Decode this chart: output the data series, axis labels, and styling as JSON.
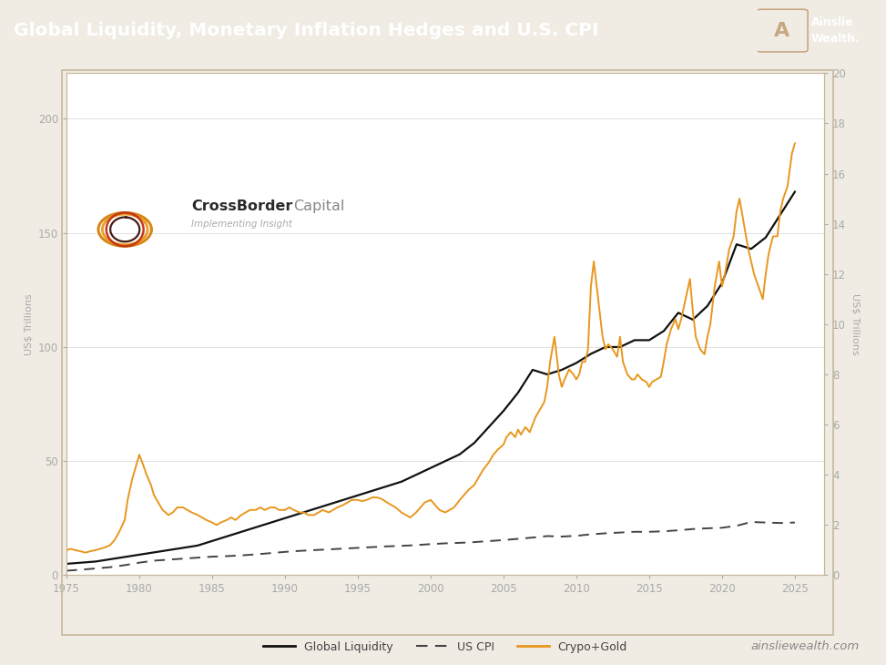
{
  "title": "Global Liquidity, Monetary Inflation Hedges and U.S. CPI",
  "title_bg_color": "#2d0b0e",
  "title_text_color": "#ffffff",
  "chart_bg_color": "#ffffff",
  "outer_bg_color": "#f0ece4",
  "border_color": "#c8b89a",
  "ylabel_left": "US$ Trillions",
  "ylabel_right": "US$ Trillions",
  "xlim": [
    1975,
    2027
  ],
  "ylim_left": [
    0,
    220
  ],
  "ylim_right": [
    0,
    20
  ],
  "xticks": [
    1975,
    1980,
    1985,
    1990,
    1995,
    2000,
    2005,
    2010,
    2015,
    2020,
    2025
  ],
  "yticks_left": [
    0,
    50,
    100,
    150,
    200
  ],
  "yticks_right": [
    0,
    2,
    4,
    6,
    8,
    10,
    12,
    14,
    16,
    18,
    20
  ],
  "tick_color": "#aaaaaa",
  "grid_color": "#e0e0e0",
  "legend_items": [
    "Global Liquidity",
    "US CPI",
    "Crypo+Gold"
  ],
  "legend_colors": [
    "#111111",
    "#444444",
    "#e8971e"
  ],
  "footer_text": "ainsliewealth.com",
  "global_liquidity": {
    "years": [
      1975,
      1976,
      1977,
      1978,
      1979,
      1980,
      1981,
      1982,
      1983,
      1984,
      1985,
      1986,
      1987,
      1988,
      1989,
      1990,
      1991,
      1992,
      1993,
      1994,
      1995,
      1996,
      1997,
      1998,
      1999,
      2000,
      2001,
      2002,
      2003,
      2004,
      2005,
      2006,
      2007,
      2008,
      2009,
      2010,
      2011,
      2012,
      2013,
      2014,
      2015,
      2016,
      2017,
      2018,
      2019,
      2020,
      2021,
      2022,
      2023,
      2024,
      2025
    ],
    "values": [
      5,
      5.5,
      6,
      7,
      8,
      9,
      10,
      11,
      12,
      13,
      15,
      17,
      19,
      21,
      23,
      25,
      27,
      29,
      31,
      33,
      35,
      37,
      39,
      41,
      44,
      47,
      50,
      53,
      58,
      65,
      72,
      80,
      90,
      88,
      90,
      93,
      97,
      100,
      100,
      103,
      103,
      107,
      115,
      112,
      118,
      128,
      145,
      143,
      148,
      158,
      168
    ],
    "color": "#111111",
    "linewidth": 1.6
  },
  "us_cpi": {
    "years": [
      1975,
      1976,
      1977,
      1978,
      1979,
      1980,
      1981,
      1982,
      1983,
      1984,
      1985,
      1986,
      1987,
      1988,
      1989,
      1990,
      1991,
      1992,
      1993,
      1994,
      1995,
      1996,
      1997,
      1998,
      1999,
      2000,
      2001,
      2002,
      2003,
      2004,
      2005,
      2006,
      2007,
      2008,
      2009,
      2010,
      2011,
      2012,
      2013,
      2014,
      2015,
      2016,
      2017,
      2018,
      2019,
      2020,
      2021,
      2022,
      2023,
      2024,
      2025
    ],
    "values": [
      0.18,
      0.22,
      0.27,
      0.32,
      0.4,
      0.5,
      0.58,
      0.62,
      0.66,
      0.7,
      0.74,
      0.76,
      0.79,
      0.83,
      0.88,
      0.93,
      0.97,
      1.0,
      1.03,
      1.06,
      1.09,
      1.12,
      1.15,
      1.17,
      1.2,
      1.24,
      1.27,
      1.29,
      1.32,
      1.36,
      1.4,
      1.45,
      1.5,
      1.56,
      1.54,
      1.57,
      1.63,
      1.67,
      1.7,
      1.73,
      1.73,
      1.75,
      1.79,
      1.84,
      1.87,
      1.89,
      1.97,
      2.12,
      2.1,
      2.08,
      2.1
    ],
    "color": "#444444",
    "linewidth": 1.4
  },
  "crypto_gold": {
    "x": [
      1975.0,
      1975.3,
      1975.6,
      1976.0,
      1976.3,
      1976.6,
      1977.0,
      1977.3,
      1977.6,
      1978.0,
      1978.3,
      1978.6,
      1979.0,
      1979.2,
      1979.5,
      1979.8,
      1980.0,
      1980.2,
      1980.5,
      1980.8,
      1981.0,
      1981.3,
      1981.6,
      1982.0,
      1982.3,
      1982.6,
      1983.0,
      1983.3,
      1983.6,
      1984.0,
      1984.3,
      1984.6,
      1985.0,
      1985.3,
      1985.6,
      1986.0,
      1986.3,
      1986.6,
      1987.0,
      1987.3,
      1987.6,
      1988.0,
      1988.3,
      1988.6,
      1989.0,
      1989.3,
      1989.6,
      1990.0,
      1990.3,
      1990.6,
      1991.0,
      1991.3,
      1991.6,
      1992.0,
      1992.3,
      1992.6,
      1993.0,
      1993.3,
      1993.6,
      1994.0,
      1994.3,
      1994.6,
      1995.0,
      1995.3,
      1995.6,
      1996.0,
      1996.3,
      1996.6,
      1997.0,
      1997.3,
      1997.6,
      1998.0,
      1998.3,
      1998.6,
      1999.0,
      1999.3,
      1999.6,
      2000.0,
      2000.3,
      2000.6,
      2001.0,
      2001.3,
      2001.6,
      2002.0,
      2002.3,
      2002.6,
      2003.0,
      2003.3,
      2003.6,
      2004.0,
      2004.3,
      2004.6,
      2005.0,
      2005.2,
      2005.5,
      2005.8,
      2006.0,
      2006.2,
      2006.5,
      2006.8,
      2007.0,
      2007.2,
      2007.5,
      2007.8,
      2008.0,
      2008.2,
      2008.5,
      2008.8,
      2009.0,
      2009.2,
      2009.5,
      2009.8,
      2010.0,
      2010.2,
      2010.4,
      2010.6,
      2010.8,
      2011.0,
      2011.2,
      2011.5,
      2011.8,
      2012.0,
      2012.2,
      2012.5,
      2012.8,
      2013.0,
      2013.2,
      2013.5,
      2013.8,
      2014.0,
      2014.2,
      2014.5,
      2014.8,
      2015.0,
      2015.2,
      2015.5,
      2015.8,
      2016.0,
      2016.2,
      2016.5,
      2016.8,
      2017.0,
      2017.2,
      2017.5,
      2017.8,
      2018.0,
      2018.2,
      2018.5,
      2018.8,
      2019.0,
      2019.2,
      2019.5,
      2019.8,
      2020.0,
      2020.2,
      2020.5,
      2020.8,
      2021.0,
      2021.2,
      2021.5,
      2021.8,
      2022.0,
      2022.2,
      2022.5,
      2022.8,
      2023.0,
      2023.2,
      2023.5,
      2023.8,
      2024.0,
      2024.2,
      2024.5,
      2024.8,
      2025.0
    ],
    "y": [
      1.0,
      1.05,
      1.0,
      0.95,
      0.9,
      0.95,
      1.0,
      1.05,
      1.1,
      1.2,
      1.4,
      1.7,
      2.2,
      3.0,
      3.8,
      4.4,
      4.8,
      4.5,
      4.0,
      3.6,
      3.2,
      2.9,
      2.6,
      2.4,
      2.5,
      2.7,
      2.7,
      2.6,
      2.5,
      2.4,
      2.3,
      2.2,
      2.1,
      2.0,
      2.1,
      2.2,
      2.3,
      2.2,
      2.4,
      2.5,
      2.6,
      2.6,
      2.7,
      2.6,
      2.7,
      2.7,
      2.6,
      2.6,
      2.7,
      2.6,
      2.5,
      2.5,
      2.4,
      2.4,
      2.5,
      2.6,
      2.5,
      2.6,
      2.7,
      2.8,
      2.9,
      3.0,
      3.0,
      2.95,
      3.0,
      3.1,
      3.1,
      3.05,
      2.9,
      2.8,
      2.7,
      2.5,
      2.4,
      2.3,
      2.5,
      2.7,
      2.9,
      3.0,
      2.8,
      2.6,
      2.5,
      2.6,
      2.7,
      3.0,
      3.2,
      3.4,
      3.6,
      3.9,
      4.2,
      4.5,
      4.8,
      5.0,
      5.2,
      5.5,
      5.7,
      5.5,
      5.8,
      5.6,
      5.9,
      5.7,
      6.0,
      6.3,
      6.6,
      6.9,
      7.5,
      8.5,
      9.5,
      8.0,
      7.5,
      7.8,
      8.2,
      8.0,
      7.8,
      8.0,
      8.5,
      8.5,
      9.0,
      11.5,
      12.5,
      11.0,
      9.5,
      9.0,
      9.2,
      9.0,
      8.7,
      9.5,
      8.5,
      8.0,
      7.8,
      7.8,
      8.0,
      7.8,
      7.7,
      7.5,
      7.7,
      7.8,
      7.9,
      8.5,
      9.2,
      9.8,
      10.2,
      9.8,
      10.2,
      11.0,
      11.8,
      10.5,
      9.5,
      9.0,
      8.8,
      9.5,
      10.0,
      11.5,
      12.5,
      11.5,
      12.0,
      13.0,
      13.5,
      14.5,
      15.0,
      14.0,
      13.0,
      12.5,
      12.0,
      11.5,
      11.0,
      12.0,
      12.8,
      13.5,
      13.5,
      14.5,
      15.0,
      15.5,
      16.8,
      17.2
    ],
    "color": "#e8971e",
    "linewidth": 1.4
  }
}
